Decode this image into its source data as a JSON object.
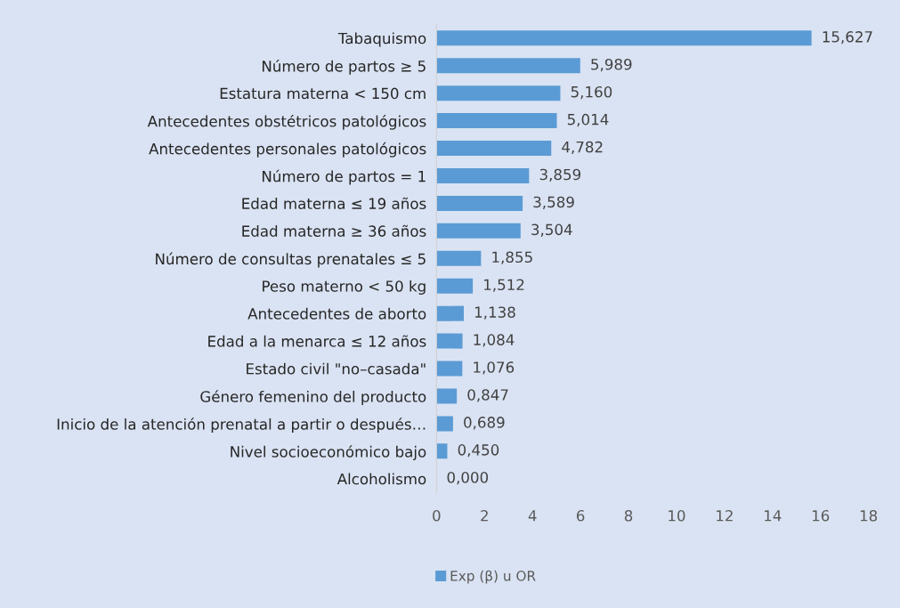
{
  "chart_data": {
    "type": "bar",
    "orientation": "horizontal",
    "categories": [
      "Tabaquismo",
      "Número de partos ≥ 5",
      "Estatura materna < 150 cm",
      "Antecedentes obstétricos patológicos",
      "Antecedentes personales patológicos",
      "Número de partos = 1",
      "Edad materna ≤ 19 años",
      "Edad materna ≥ 36 años",
      "Número de consultas prenatales ≤ 5",
      "Peso materno < 50 kg",
      "Antecedentes de aborto",
      "Edad a la menarca ≤ 12 años",
      "Estado civil \"no–casada\"",
      "Género femenino del producto",
      "Inicio de la atención prenatal a partir o después…",
      "Nivel socioeconómico bajo",
      "Alcoholismo"
    ],
    "series": [
      {
        "name": "Exp (β) u OR",
        "color": "#5b9bd5",
        "values": [
          15.627,
          5.989,
          5.16,
          5.014,
          4.782,
          3.859,
          3.589,
          3.504,
          1.855,
          1.512,
          1.138,
          1.084,
          1.076,
          0.847,
          0.689,
          0.45,
          0.0
        ],
        "value_labels": [
          "15,627",
          "5,989",
          "5,160",
          "5,014",
          "4,782",
          "3,859",
          "3,589",
          "3,504",
          "1,855",
          "1,512",
          "1,138",
          "1,084",
          "1,076",
          "0,847",
          "0,689",
          "0,450",
          "0,000"
        ]
      }
    ],
    "xlim": [
      0,
      18
    ],
    "xticks": [
      0,
      2,
      4,
      6,
      8,
      10,
      12,
      14,
      16,
      18
    ],
    "grid": false,
    "legend": "bottom"
  }
}
